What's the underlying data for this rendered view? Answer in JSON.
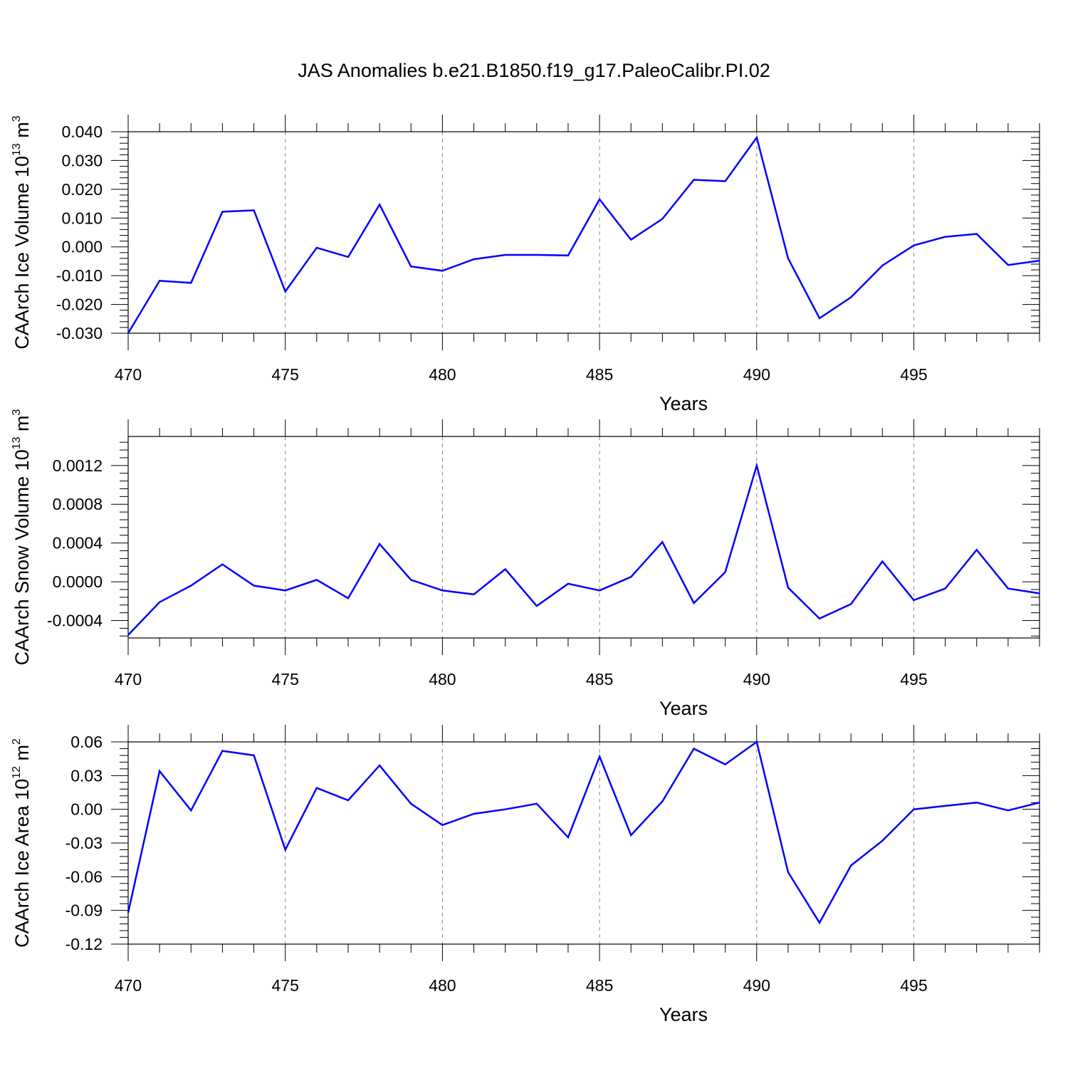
{
  "title": "JAS Anomalies b.e21.B1850.f19_g17.PaleoCalibr.PI.02",
  "colors": {
    "series": "#0000ff",
    "axis": "#000000",
    "grid": "#888888"
  },
  "chart_data": [
    {
      "type": "line",
      "xlabel": "Years",
      "ylabel": {
        "text": "CAArch Ice Volume 10",
        "sup": "13",
        "unit": " m",
        "unit_sup": "3"
      },
      "xlim": [
        470,
        499
      ],
      "ylim": [
        -0.03,
        0.04
      ],
      "xticks": [
        470,
        475,
        480,
        485,
        490,
        495
      ],
      "xtick_labels": [
        "470",
        "475",
        "480",
        "485",
        "490",
        "495"
      ],
      "yticks": [
        -0.03,
        -0.02,
        -0.01,
        0.0,
        0.01,
        0.02,
        0.03,
        0.04
      ],
      "ytick_labels": [
        "-0.030",
        "-0.020",
        "-0.010",
        "0.000",
        "0.010",
        "0.020",
        "0.030",
        "0.040"
      ],
      "grid": "vertical dashed at major x ticks",
      "x": [
        470,
        471,
        472,
        473,
        474,
        475,
        476,
        477,
        478,
        479,
        480,
        481,
        482,
        483,
        484,
        485,
        486,
        487,
        488,
        489,
        490,
        491,
        492,
        493,
        494,
        495,
        496,
        497,
        498,
        499
      ],
      "y": [
        -0.03,
        -0.0118,
        -0.0125,
        0.0122,
        0.0127,
        -0.0155,
        -0.0003,
        -0.0035,
        0.0147,
        -0.0068,
        -0.0083,
        -0.0043,
        -0.0028,
        -0.0028,
        -0.003,
        0.0165,
        0.0025,
        0.0097,
        0.0233,
        0.0228,
        0.038,
        -0.004,
        -0.0248,
        -0.0175,
        -0.0065,
        0.0005,
        0.0035,
        0.0045,
        -0.0063,
        -0.0048
      ]
    },
    {
      "type": "line",
      "xlabel": "Years",
      "ylabel": {
        "text": "CAArch Snow Volume 10",
        "sup": "13",
        "unit": " m",
        "unit_sup": "3"
      },
      "xlim": [
        470,
        499
      ],
      "ylim": [
        -0.00058,
        0.0015
      ],
      "xticks": [
        470,
        475,
        480,
        485,
        490,
        495
      ],
      "xtick_labels": [
        "470",
        "475",
        "480",
        "485",
        "490",
        "495"
      ],
      "yticks": [
        -0.0004,
        0.0,
        0.0004,
        0.0008,
        0.0012
      ],
      "ytick_labels": [
        "-0.0004",
        "0.0000",
        "0.0004",
        "0.0008",
        "0.0012"
      ],
      "grid": "vertical dashed at major x ticks",
      "x": [
        470,
        471,
        472,
        473,
        474,
        475,
        476,
        477,
        478,
        479,
        480,
        481,
        482,
        483,
        484,
        485,
        486,
        487,
        488,
        489,
        490,
        491,
        492,
        493,
        494,
        495,
        496,
        497,
        498,
        499
      ],
      "y": [
        -0.00055,
        -0.00021,
        -4e-05,
        0.00018,
        -4e-05,
        -9e-05,
        2e-05,
        -0.00017,
        0.00039,
        2e-05,
        -9e-05,
        -0.00013,
        0.00013,
        -0.00025,
        -2e-05,
        -9e-05,
        5e-05,
        0.00041,
        -0.00022,
        0.0001,
        0.0012,
        -6e-05,
        -0.00038,
        -0.00023,
        0.00021,
        -0.00019,
        -7e-05,
        0.00033,
        -7e-05,
        -0.00012
      ]
    },
    {
      "type": "line",
      "xlabel": "Years",
      "ylabel": {
        "text": "CAArch Ice Area 10",
        "sup": "12",
        "unit": " m",
        "unit_sup": "2"
      },
      "xlim": [
        470,
        499
      ],
      "ylim": [
        -0.12,
        0.06
      ],
      "xticks": [
        470,
        475,
        480,
        485,
        490,
        495
      ],
      "xtick_labels": [
        "470",
        "475",
        "480",
        "485",
        "490",
        "495"
      ],
      "yticks": [
        -0.12,
        -0.09,
        -0.06,
        -0.03,
        0.0,
        0.03,
        0.06
      ],
      "ytick_labels": [
        "-0.12",
        "-0.09",
        "-0.06",
        "-0.03",
        "0.00",
        "0.03",
        "0.06"
      ],
      "grid": "vertical dashed at major x ticks",
      "x": [
        470,
        471,
        472,
        473,
        474,
        475,
        476,
        477,
        478,
        479,
        480,
        481,
        482,
        483,
        484,
        485,
        486,
        487,
        488,
        489,
        490,
        491,
        492,
        493,
        494,
        495,
        496,
        497,
        498,
        499
      ],
      "y": [
        -0.092,
        0.034,
        -0.001,
        0.052,
        0.048,
        -0.036,
        0.019,
        0.008,
        0.039,
        0.005,
        -0.014,
        -0.004,
        0.0,
        0.005,
        -0.025,
        0.047,
        -0.023,
        0.007,
        0.054,
        0.04,
        0.06,
        -0.056,
        -0.101,
        -0.05,
        -0.028,
        0.0,
        0.003,
        0.006,
        -0.001,
        0.006
      ]
    }
  ]
}
